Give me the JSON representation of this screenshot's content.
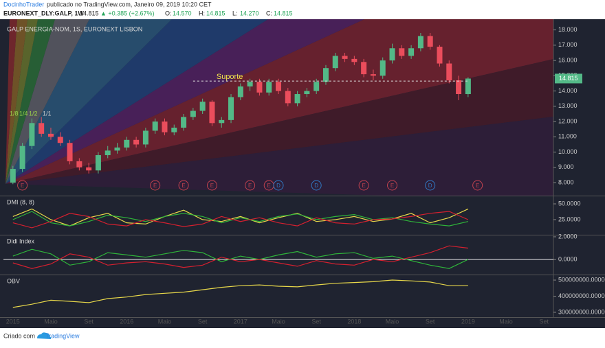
{
  "header": {
    "author": "DocinhoTrader",
    "published": "publicado no TradingView.com, Janeiro 09, 2019 10:20 CET",
    "symbol": "EURONEXT_DLY:GALP, 1W",
    "last": "14.815",
    "change": "▲ +0.385 (+2.67%)",
    "ohlc": [
      {
        "label": "O:",
        "value": "14.570"
      },
      {
        "label": "H:",
        "value": "14.815"
      },
      {
        "label": "L:",
        "value": "14.270"
      },
      {
        "label": "C:",
        "value": "14.815"
      }
    ]
  },
  "footer": {
    "created": "Criado com",
    "brand": "TradingView"
  },
  "chart_data": [
    {
      "type": "candlestick",
      "title": "GALP ENERGIA-NOM, 1S, EURONEXT LISBON",
      "up_color": "#53b987",
      "down_color": "#eb4d5c",
      "x": [
        "2015-01",
        "2015-02",
        "2015-03",
        "2015-04",
        "2015-05",
        "2015-06",
        "2015-07",
        "2015-08",
        "2015-09",
        "2015-10",
        "2015-11",
        "2015-12",
        "2016-01",
        "2016-02",
        "2016-03",
        "2016-04",
        "2016-05",
        "2016-06",
        "2016-07",
        "2016-08",
        "2016-09",
        "2016-10",
        "2016-11",
        "2016-12",
        "2017-01",
        "2017-02",
        "2017-03",
        "2017-04",
        "2017-05",
        "2017-06",
        "2017-07",
        "2017-08",
        "2017-09",
        "2017-10",
        "2017-11",
        "2017-12",
        "2018-01",
        "2018-02",
        "2018-03",
        "2018-04",
        "2018-05",
        "2018-06",
        "2018-07",
        "2018-08",
        "2018-09",
        "2018-10",
        "2018-11",
        "2018-12",
        "2019-01"
      ],
      "open": [
        8.0,
        8.9,
        10.4,
        11.9,
        11.2,
        11.0,
        10.6,
        9.4,
        9.0,
        8.8,
        9.8,
        10.1,
        10.3,
        10.8,
        10.5,
        11.4,
        12.0,
        11.3,
        11.6,
        12.3,
        12.7,
        13.3,
        11.9,
        12.1,
        13.6,
        14.3,
        14.6,
        13.9,
        14.6,
        14.0,
        13.2,
        13.8,
        14.0,
        14.6,
        15.5,
        16.3,
        16.1,
        15.9,
        15.1,
        15.0,
        16.0,
        16.8,
        16.3,
        16.8,
        17.6,
        16.9,
        15.8,
        14.7,
        13.8
      ],
      "high": [
        9.1,
        10.6,
        12.2,
        12.3,
        11.6,
        11.3,
        10.8,
        9.6,
        9.3,
        10.0,
        10.4,
        10.6,
        11.0,
        11.0,
        11.6,
        12.2,
        12.2,
        11.8,
        12.5,
        12.9,
        13.5,
        13.4,
        12.3,
        13.8,
        14.5,
        14.8,
        14.8,
        14.8,
        14.8,
        14.2,
        14.0,
        14.2,
        14.8,
        15.7,
        16.5,
        16.5,
        16.3,
        16.1,
        15.4,
        16.2,
        17.1,
        17.0,
        17.0,
        17.8,
        17.8,
        17.0,
        16.0,
        15.0,
        14.9
      ],
      "low": [
        7.9,
        8.7,
        10.2,
        11.0,
        10.8,
        10.4,
        9.2,
        8.8,
        8.6,
        8.6,
        9.6,
        9.9,
        10.1,
        10.3,
        10.3,
        11.2,
        11.1,
        11.1,
        11.4,
        12.1,
        12.5,
        11.7,
        11.6,
        11.9,
        13.4,
        14.0,
        13.7,
        13.7,
        13.8,
        13.0,
        13.0,
        13.6,
        13.8,
        14.4,
        15.3,
        15.9,
        15.7,
        14.9,
        14.7,
        14.8,
        15.8,
        16.1,
        16.1,
        16.6,
        16.7,
        15.6,
        14.5,
        13.4,
        13.6
      ],
      "close": [
        8.9,
        10.4,
        11.9,
        11.2,
        11.0,
        10.6,
        9.4,
        9.0,
        8.8,
        9.8,
        10.1,
        10.3,
        10.8,
        10.5,
        11.4,
        12.0,
        11.3,
        11.6,
        12.3,
        12.7,
        13.3,
        11.9,
        12.1,
        13.6,
        14.3,
        14.6,
        13.9,
        14.6,
        14.0,
        13.2,
        13.8,
        14.0,
        14.6,
        15.5,
        16.3,
        16.1,
        15.9,
        15.1,
        15.0,
        16.0,
        16.8,
        16.3,
        16.8,
        17.6,
        16.9,
        15.8,
        14.7,
        13.8,
        14.815
      ],
      "ylim": [
        7.15,
        18.7
      ],
      "yticks": [
        {
          "value": 8,
          "label": "8.000"
        },
        {
          "value": 9,
          "label": "9.000"
        },
        {
          "value": 10,
          "label": "10.000"
        },
        {
          "value": 11,
          "label": "11.000"
        },
        {
          "value": 12,
          "label": "12.000"
        },
        {
          "value": 13,
          "label": "13.000"
        },
        {
          "value": 14,
          "label": "14.000"
        },
        {
          "value": 15,
          "label": "15.000"
        },
        {
          "value": 16,
          "label": "16.000"
        },
        {
          "value": 17,
          "label": "17.000"
        },
        {
          "value": 18,
          "label": "18.000"
        }
      ],
      "xlim": [
        "2014-12",
        "2019-10"
      ],
      "xticks": [
        {
          "value": "2015-01",
          "label": "2015"
        },
        {
          "value": "2015-05",
          "label": "Maio"
        },
        {
          "value": "2015-09",
          "label": "Set"
        },
        {
          "value": "2016-01",
          "label": "2016"
        },
        {
          "value": "2016-05",
          "label": "Maio"
        },
        {
          "value": "2016-09",
          "label": "Set"
        },
        {
          "value": "2017-01",
          "label": "2017"
        },
        {
          "value": "2017-05",
          "label": "Maio"
        },
        {
          "value": "2017-09",
          "label": "Set"
        },
        {
          "value": "2018-01",
          "label": "2018"
        },
        {
          "value": "2018-05",
          "label": "Maio"
        },
        {
          "value": "2018-09",
          "label": "Set"
        },
        {
          "value": "2019-01",
          "label": "2019"
        },
        {
          "value": "2019-05",
          "label": "Maio"
        },
        {
          "value": "2019-09",
          "label": "Set"
        }
      ],
      "support": {
        "label": "Suporte",
        "value": 14.65,
        "from": "2016-08",
        "to": "2019-01"
      },
      "fan_labels": [
        "1/8",
        "1/4",
        "1/2",
        "1/1"
      ],
      "events": [
        {
          "x": "2015-02",
          "label": "E",
          "color": "#c2424f"
        },
        {
          "x": "2016-04",
          "label": "E",
          "color": "#c2424f"
        },
        {
          "x": "2016-07",
          "label": "E",
          "color": "#c2424f"
        },
        {
          "x": "2016-10",
          "label": "E",
          "color": "#c2424f"
        },
        {
          "x": "2017-02",
          "label": "E",
          "color": "#c2424f"
        },
        {
          "x": "2017-04",
          "label": "E",
          "color": "#c2424f"
        },
        {
          "x": "2017-05",
          "label": "D",
          "color": "#3179c4"
        },
        {
          "x": "2017-09",
          "label": "D",
          "color": "#3179c4"
        },
        {
          "x": "2018-02",
          "label": "E",
          "color": "#c2424f"
        },
        {
          "x": "2018-05",
          "label": "E",
          "color": "#c2424f"
        },
        {
          "x": "2018-09",
          "label": "D",
          "color": "#3179c4"
        },
        {
          "x": "2019-02",
          "label": "E",
          "color": "#c2424f"
        }
      ]
    },
    {
      "type": "line",
      "title": "DMI (8, 8)",
      "x": [
        "2015-01",
        "2015-03",
        "2015-05",
        "2015-07",
        "2015-09",
        "2015-11",
        "2016-01",
        "2016-03",
        "2016-05",
        "2016-07",
        "2016-09",
        "2016-11",
        "2017-01",
        "2017-03",
        "2017-05",
        "2017-07",
        "2017-09",
        "2017-11",
        "2018-01",
        "2018-03",
        "2018-05",
        "2018-07",
        "2018-09",
        "2018-11",
        "2019-01"
      ],
      "series": [
        {
          "color": "#e8d84a",
          "values": [
            30,
            42,
            25,
            15,
            28,
            35,
            20,
            18,
            30,
            40,
            25,
            22,
            30,
            20,
            28,
            35,
            22,
            25,
            30,
            22,
            26,
            35,
            20,
            28,
            42
          ]
        },
        {
          "color": "#2fb53a",
          "values": [
            25,
            38,
            20,
            15,
            22,
            32,
            28,
            22,
            30,
            35,
            30,
            20,
            28,
            22,
            30,
            34,
            25,
            30,
            33,
            25,
            28,
            22,
            18,
            15,
            22
          ]
        },
        {
          "color": "#d5202f",
          "values": [
            20,
            12,
            22,
            35,
            30,
            18,
            15,
            25,
            20,
            14,
            18,
            30,
            22,
            28,
            20,
            15,
            28,
            20,
            18,
            25,
            26,
            30,
            35,
            38,
            25
          ]
        }
      ],
      "ylim": [
        1,
        62
      ],
      "yticks": [
        {
          "value": 50,
          "label": "50.0000"
        },
        {
          "value": 25,
          "label": "25.0000"
        }
      ]
    },
    {
      "type": "line",
      "title": "Didi Index",
      "reference_line": 0,
      "x": [
        "2015-01",
        "2015-03",
        "2015-05",
        "2015-07",
        "2015-09",
        "2015-11",
        "2016-01",
        "2016-03",
        "2016-05",
        "2016-07",
        "2016-09",
        "2016-11",
        "2017-01",
        "2017-03",
        "2017-05",
        "2017-07",
        "2017-09",
        "2017-11",
        "2018-01",
        "2018-03",
        "2018-05",
        "2018-07",
        "2018-09",
        "2018-11",
        "2019-01"
      ],
      "series": [
        {
          "color": "#2fb53a",
          "values": [
            0.3,
            0.9,
            0.5,
            -0.5,
            -0.2,
            0.6,
            0.4,
            0.2,
            0.5,
            0.8,
            0.6,
            -0.2,
            0.3,
            0.0,
            0.4,
            0.7,
            0.2,
            0.5,
            0.6,
            0.1,
            0.3,
            -0.1,
            -0.5,
            -0.8,
            0.0
          ]
        },
        {
          "color": "#d5202f",
          "values": [
            -0.3,
            -0.8,
            -0.4,
            0.5,
            0.2,
            -0.5,
            -0.3,
            -0.2,
            -0.4,
            -0.7,
            -0.5,
            0.2,
            -0.2,
            0.0,
            -0.3,
            -0.6,
            -0.1,
            -0.4,
            -0.5,
            0.0,
            -0.2,
            0.2,
            0.6,
            1.2,
            1.0
          ]
        }
      ],
      "ylim": [
        -1.33,
        2.12
      ],
      "yticks": [
        {
          "value": 2,
          "label": "2.0000"
        },
        {
          "value": 0,
          "label": "0.0000"
        }
      ]
    },
    {
      "type": "line",
      "title": "OBV",
      "x": [
        "2015-01",
        "2015-03",
        "2015-05",
        "2015-07",
        "2015-09",
        "2015-11",
        "2016-01",
        "2016-03",
        "2016-05",
        "2016-07",
        "2016-09",
        "2016-11",
        "2017-01",
        "2017-03",
        "2017-05",
        "2017-07",
        "2017-09",
        "2017-11",
        "2018-01",
        "2018-03",
        "2018-05",
        "2018-07",
        "2018-09",
        "2018-11",
        "2019-01"
      ],
      "series": [
        {
          "color": "#e8d84a",
          "values": [
            330000000,
            350000000,
            375000000,
            368000000,
            360000000,
            385000000,
            395000000,
            410000000,
            418000000,
            425000000,
            440000000,
            455000000,
            465000000,
            470000000,
            462000000,
            458000000,
            470000000,
            480000000,
            485000000,
            490000000,
            500000000,
            495000000,
            488000000,
            465000000,
            465000000
          ]
        }
      ],
      "ylim": [
        287000000,
        530000000
      ],
      "yticks": [
        {
          "value": 500000000,
          "label": "500000000.0000"
        },
        {
          "value": 400000000,
          "label": "400000000.0000"
        },
        {
          "value": 300000000,
          "label": "300000000.0000"
        }
      ]
    }
  ]
}
